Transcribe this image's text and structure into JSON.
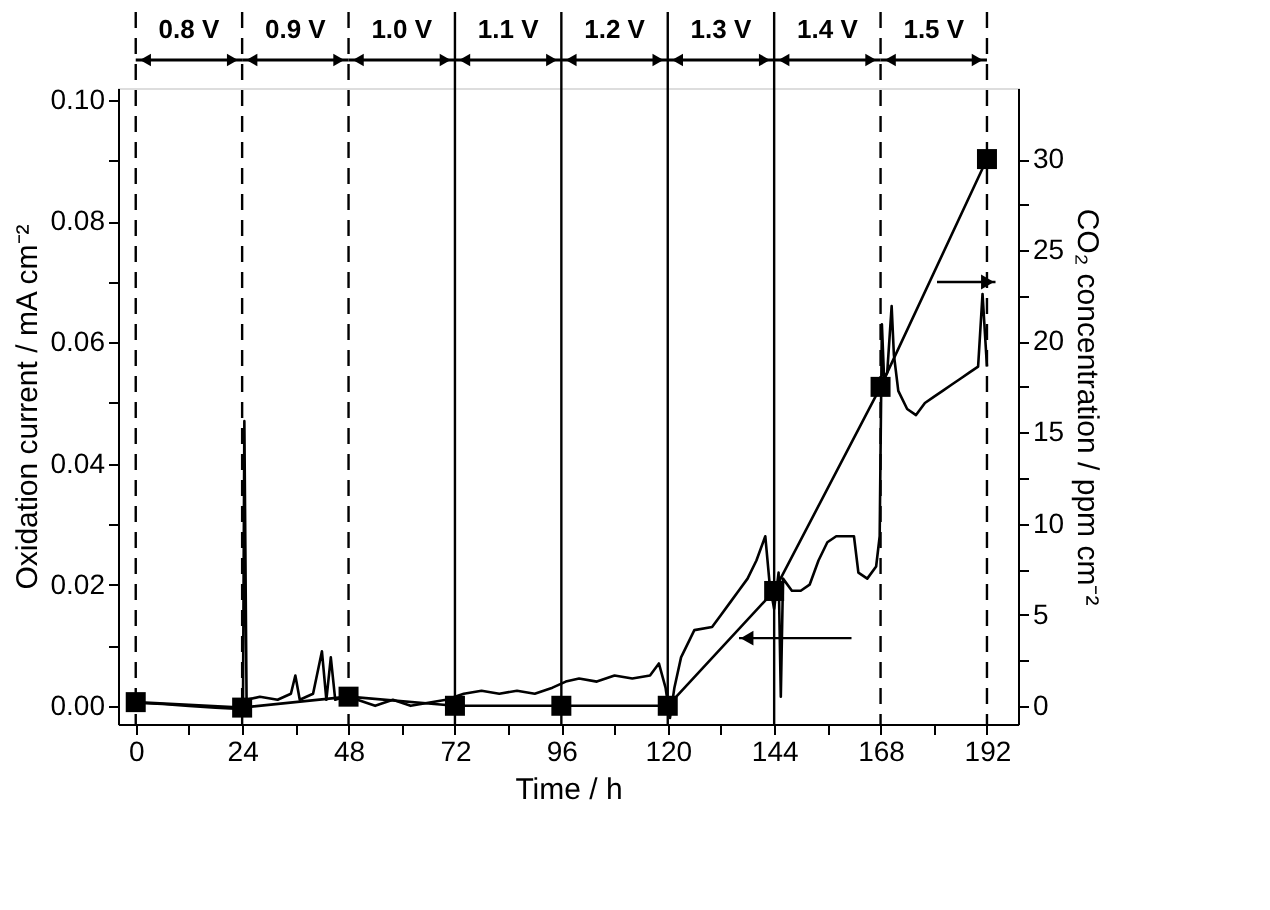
{
  "chart_data": {
    "type": "line",
    "xlabel": "Time / h",
    "ylabel": "Oxidation current / mA cm⁻²",
    "y2label": "CO₂ concentration / ppm cm⁻²",
    "xlim": [
      -4,
      199
    ],
    "ylim": [
      -0.003,
      0.102
    ],
    "y2lim": [
      -1.0,
      33.9
    ],
    "xticks": [
      0,
      {
        "value": 12,
        "label": null
      },
      24,
      {
        "value": 36,
        "label": null
      },
      48,
      {
        "value": 60,
        "label": null
      },
      72,
      {
        "value": 84,
        "label": null
      },
      96,
      {
        "value": 108,
        "label": null
      },
      120,
      {
        "value": 132,
        "label": null
      },
      144,
      {
        "value": 156,
        "label": null
      },
      168,
      {
        "value": 180,
        "label": null
      },
      192
    ],
    "yticks": [
      {
        "value": 0,
        "label": "0.00"
      },
      {
        "value": 0.01,
        "label": null
      },
      {
        "value": 0.02,
        "label": "0.02"
      },
      {
        "value": 0.03,
        "label": null
      },
      {
        "value": 0.04,
        "label": "0.04"
      },
      {
        "value": 0.05,
        "label": null
      },
      {
        "value": 0.06,
        "label": "0.06"
      },
      {
        "value": 0.07,
        "label": null
      },
      {
        "value": 0.08,
        "label": "0.08"
      },
      {
        "value": 0.09,
        "label": null
      },
      {
        "value": 0.1,
        "label": "0.10"
      }
    ],
    "y2ticks": [
      0,
      {
        "value": 2.5,
        "label": null
      },
      5,
      {
        "value": 7.5,
        "label": null
      },
      10,
      {
        "value": 12.5,
        "label": null
      },
      15,
      {
        "value": 17.5,
        "label": null
      },
      20,
      {
        "value": 22.5,
        "label": null
      },
      25,
      {
        "value": 27.5,
        "label": null
      },
      30
    ],
    "grid": false,
    "series": [
      {
        "color": "#000000",
        "marker": "none",
        "line_style": "solid",
        "x": [
          0,
          6,
          12,
          18,
          23.5,
          24.2,
          24.5,
          25,
          28,
          32,
          35,
          36,
          37,
          40,
          42,
          43,
          44,
          45,
          47,
          50,
          54,
          58,
          62,
          66,
          70,
          74,
          78,
          82,
          86,
          90,
          94,
          97,
          100,
          104,
          108,
          112,
          116,
          118,
          119.5,
          120.5,
          121.5,
          123,
          126,
          130,
          132,
          134,
          136,
          138,
          140,
          142,
          143,
          144,
          145,
          145.5,
          146,
          148,
          150,
          152,
          154,
          156,
          158,
          160,
          162,
          163,
          165,
          167,
          167.8,
          168.3,
          168.8,
          169.5,
          170.5,
          171,
          172,
          174,
          176,
          178,
          180,
          182,
          184,
          186,
          188,
          190,
          191,
          192
        ],
        "values": [
          0.0005,
          0.0003,
          0.0,
          -0.0003,
          -0.0005,
          0.001,
          0.047,
          0.001,
          0.0015,
          0.001,
          0.002,
          0.005,
          0.001,
          0.002,
          0.009,
          0.001,
          0.008,
          0.001,
          0.0015,
          0.001,
          0.0,
          0.001,
          0.0,
          0.0005,
          0.001,
          0.002,
          0.0025,
          0.002,
          0.0025,
          0.002,
          0.003,
          0.004,
          0.0045,
          0.004,
          0.005,
          0.0045,
          0.005,
          0.007,
          0.003,
          -0.002,
          0.003,
          0.008,
          0.0125,
          0.013,
          0.015,
          0.017,
          0.019,
          0.021,
          0.024,
          0.028,
          0.02,
          0.016,
          0.022,
          0.0015,
          0.021,
          0.019,
          0.019,
          0.02,
          0.024,
          0.027,
          0.028,
          0.028,
          0.028,
          0.022,
          0.021,
          0.023,
          0.028,
          0.063,
          0.054,
          0.055,
          0.066,
          0.058,
          0.052,
          0.049,
          0.048,
          0.05,
          0.051,
          0.052,
          0.053,
          0.054,
          0.055,
          0.056,
          0.068,
          0.056
        ]
      },
      {
        "axis": "y2",
        "color": "#000000",
        "marker": "square",
        "line_style": "solid",
        "x": [
          0,
          24,
          48,
          72,
          96,
          120,
          144,
          168,
          192
        ],
        "values": [
          0.2,
          -0.1,
          0.5,
          0.0,
          0.0,
          0.0,
          6.3,
          17.5,
          30
        ]
      }
    ],
    "ref_lines": [
      {
        "axis": "x",
        "value": 0,
        "line_style": "dashed"
      },
      {
        "axis": "x",
        "value": 24,
        "line_style": "dashed"
      },
      {
        "axis": "x",
        "value": 48,
        "line_style": "dashed"
      },
      {
        "axis": "x",
        "value": 72,
        "line_style": "solid"
      },
      {
        "axis": "x",
        "value": 96,
        "line_style": "solid"
      },
      {
        "axis": "x",
        "value": 120,
        "line_style": "solid"
      },
      {
        "axis": "x",
        "value": 144,
        "line_style": "solid"
      },
      {
        "axis": "x",
        "value": 168,
        "line_style": "dashed"
      },
      {
        "axis": "x",
        "value": 192,
        "line_style": "dashed"
      }
    ],
    "annotations": [
      "0.8 V",
      "0.9 V",
      "1.0 V",
      "1.1 V",
      "1.2 V",
      "1.3 V",
      "1.4 V",
      "1.5 V"
    ]
  }
}
